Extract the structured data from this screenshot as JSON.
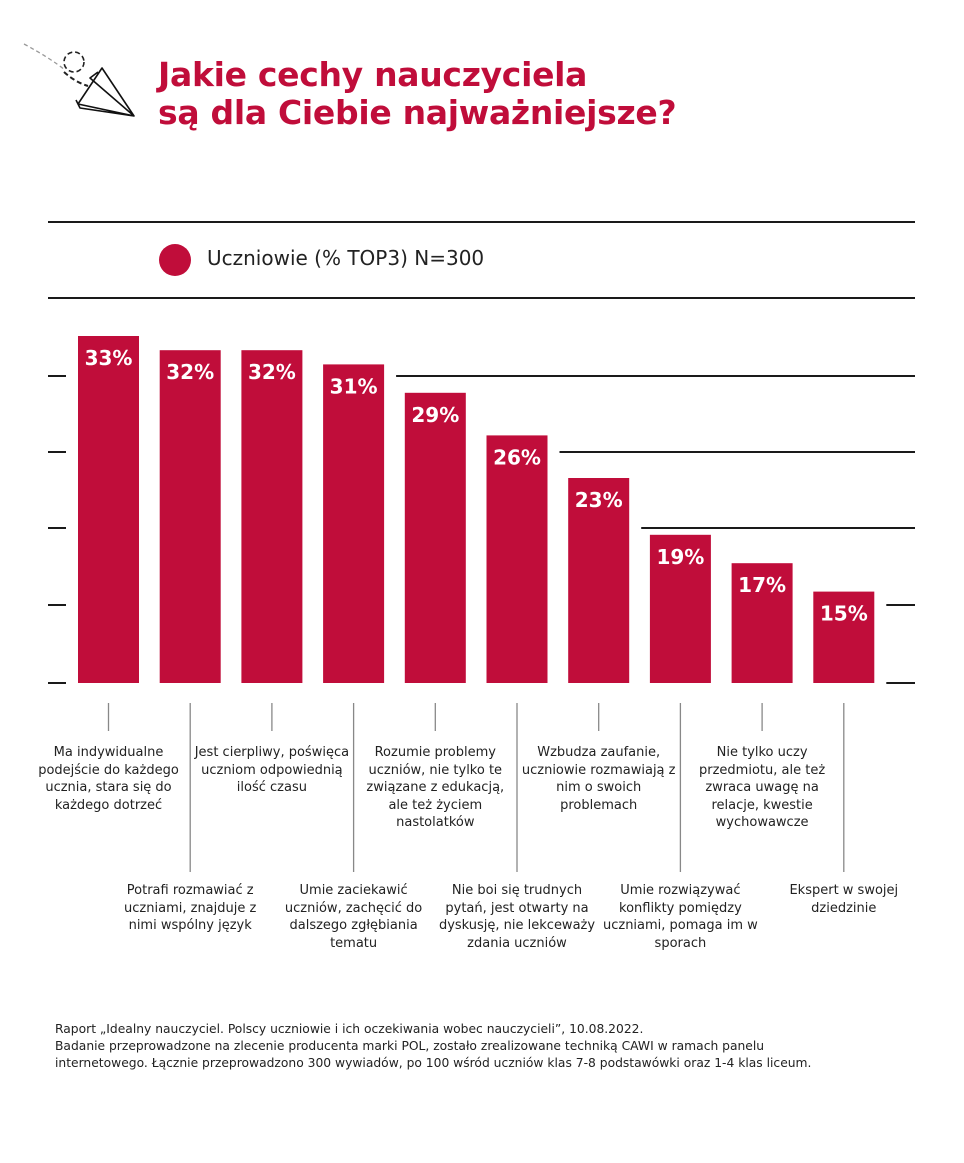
{
  "header": {
    "icon": "paper-plane-icon",
    "title_line1": "Jakie cechy nauczyciela",
    "title_line2": "są dla Ciebie najważniejsze?"
  },
  "colors": {
    "accent": "#c00d3a",
    "line": "#1a1a1a",
    "label_text": "#ffffff"
  },
  "chart_data": {
    "type": "bar",
    "title": "Jakie cechy nauczyciela są dla Ciebie najważniejsze?",
    "legend": [
      {
        "name": "Uczniowie (% TOP3) N=300",
        "color": "#c00d3a"
      }
    ],
    "legend_placement": "top",
    "categories": [
      "Ma indywidualne podejście do każdego ucznia, stara się do każdego dotrzeć",
      "Potrafi rozmawiać z uczniami, znajduje z nimi wspólny język",
      "Jest cierpliwy, poświęca uczniom odpowiednią ilość czasu",
      "Umie zaciekawić uczniów, zachęcić do dalszego zgłębiania tematu",
      "Rozumie problemy uczniów, nie tylko te związane z edukacją, ale też życiem nastolatków",
      "Nie boi się trudnych pytań, jest otwarty na dyskusję, nie lekceważy zdania uczniów",
      "Wzbudza zaufanie, uczniowie rozmawiają z nim o swoich problemach",
      "Umie rozwiązywać konflikty pomiędzy uczniami, pomaga im w sporach",
      "Nie tylko uczy przedmiotu, ale też zwraca uwagę na relacje, kwestie wychowawcze",
      "Ekspert w swojej dziedzinie"
    ],
    "values": [
      33,
      32,
      32,
      31,
      29,
      26,
      23,
      19,
      17,
      15
    ],
    "value_labels": [
      "33%",
      "32%",
      "32%",
      "31%",
      "29%",
      "26%",
      "23%",
      "19%",
      "17%",
      "15%"
    ],
    "unit": "%",
    "grid": true,
    "y_tick_labels": false
  },
  "footer": {
    "text": "Raport „Idealny nauczyciel. Polscy uczniowie i ich oczekiwania wobec nauczycieli”, 10.08.2022.\nBadanie przeprowadzone na zlecenie producenta marki POL, zostało zrealizowane techniką CAWI w ramach panelu\ninternetowego. Łącznie przeprowadzono 300 wywiadów, po 100 wśród uczniów klas 7-8 podstawówki oraz 1-4 klas liceum."
  }
}
